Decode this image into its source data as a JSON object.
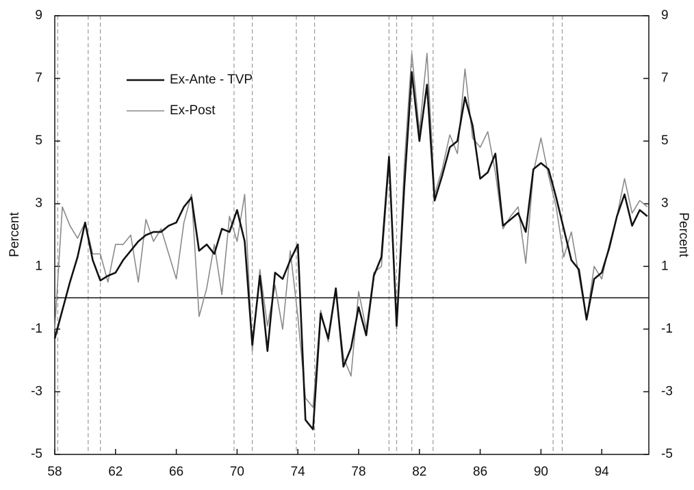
{
  "chart_data": {
    "type": "line",
    "ylabel": "Percent",
    "y2label": "Percent",
    "x": [
      58.0,
      58.5,
      59.0,
      59.5,
      60.0,
      60.5,
      61.0,
      61.5,
      62.0,
      62.5,
      63.0,
      63.5,
      64.0,
      64.5,
      65.0,
      65.5,
      66.0,
      66.5,
      67.0,
      67.5,
      68.0,
      68.5,
      69.0,
      69.5,
      70.0,
      70.5,
      71.0,
      71.5,
      72.0,
      72.5,
      73.0,
      73.5,
      74.0,
      74.5,
      75.0,
      75.5,
      76.0,
      76.5,
      77.0,
      77.5,
      78.0,
      78.5,
      79.0,
      79.5,
      80.0,
      80.5,
      81.0,
      81.5,
      82.0,
      82.5,
      83.0,
      83.5,
      84.0,
      84.5,
      85.0,
      85.5,
      86.0,
      86.5,
      87.0,
      87.5,
      88.0,
      88.5,
      89.0,
      89.5,
      90.0,
      90.5,
      91.0,
      91.5,
      92.0,
      92.5,
      93.0,
      93.5,
      94.0,
      94.5,
      95.0,
      95.5,
      96.0,
      96.5,
      97.0
    ],
    "series": [
      {
        "name": "Ex-Ante - TVP",
        "color": "#111111",
        "width": 2.6,
        "values": [
          -1.3,
          -0.4,
          0.5,
          1.3,
          2.4,
          1.2,
          0.55,
          0.7,
          0.8,
          1.2,
          1.5,
          1.8,
          2.0,
          2.1,
          2.1,
          2.3,
          2.4,
          2.9,
          3.2,
          1.5,
          1.7,
          1.4,
          2.2,
          2.1,
          2.8,
          1.8,
          -1.5,
          0.7,
          -1.7,
          0.8,
          0.6,
          1.2,
          1.7,
          -3.9,
          -4.2,
          -0.5,
          -1.3,
          0.3,
          -2.2,
          -1.6,
          -0.3,
          -1.2,
          0.7,
          1.3,
          4.5,
          -0.9,
          3.5,
          7.2,
          5.0,
          6.8,
          3.1,
          3.9,
          4.8,
          5.0,
          6.4,
          5.5,
          3.8,
          4.0,
          4.6,
          2.3,
          2.5,
          2.7,
          2.1,
          4.1,
          4.3,
          4.1,
          3.2,
          2.2,
          1.2,
          0.9,
          -0.7,
          0.6,
          0.8,
          1.6,
          2.6,
          3.3,
          2.3,
          2.8,
          2.6
        ]
      },
      {
        "name": "Ex-Post",
        "color": "#8a8a8a",
        "width": 1.6,
        "values": [
          -1.0,
          2.9,
          2.3,
          1.9,
          2.4,
          1.4,
          1.4,
          0.5,
          1.7,
          1.7,
          2.0,
          0.5,
          2.5,
          1.8,
          2.2,
          1.4,
          0.6,
          2.4,
          3.3,
          -0.6,
          0.3,
          1.7,
          0.1,
          2.6,
          1.8,
          3.3,
          -1.7,
          0.9,
          -0.9,
          0.4,
          -1.0,
          1.5,
          -0.6,
          -3.2,
          -3.5,
          -0.4,
          -1.4,
          0.2,
          -1.9,
          -2.5,
          0.2,
          -1.0,
          0.8,
          1.0,
          4.3,
          -1.0,
          4.2,
          7.8,
          5.3,
          7.8,
          3.3,
          4.1,
          5.2,
          4.6,
          7.3,
          5.1,
          4.8,
          5.3,
          4.0,
          2.2,
          2.6,
          2.9,
          1.1,
          4.0,
          5.1,
          3.9,
          2.9,
          1.3,
          2.1,
          0.7,
          -0.7,
          1.0,
          0.6,
          1.7,
          2.6,
          3.8,
          2.7,
          3.1,
          2.9
        ]
      }
    ],
    "recession_lines": [
      58.2,
      60.2,
      61.0,
      69.8,
      71.0,
      73.9,
      75.1,
      80.0,
      80.5,
      81.5,
      82.9,
      90.8,
      91.4
    ],
    "reference_line": 0,
    "xlim": [
      58,
      97.1
    ],
    "xticks": [
      58,
      62,
      66,
      70,
      74,
      78,
      82,
      86,
      90,
      94
    ],
    "ylim": [
      -5,
      9
    ],
    "yticks": [
      -5,
      -3,
      -1,
      1,
      3,
      5,
      7,
      9
    ],
    "y2lim": [
      -5,
      9
    ],
    "y2ticks": [
      -5,
      -3,
      -1,
      1,
      3,
      5,
      7,
      9
    ]
  }
}
